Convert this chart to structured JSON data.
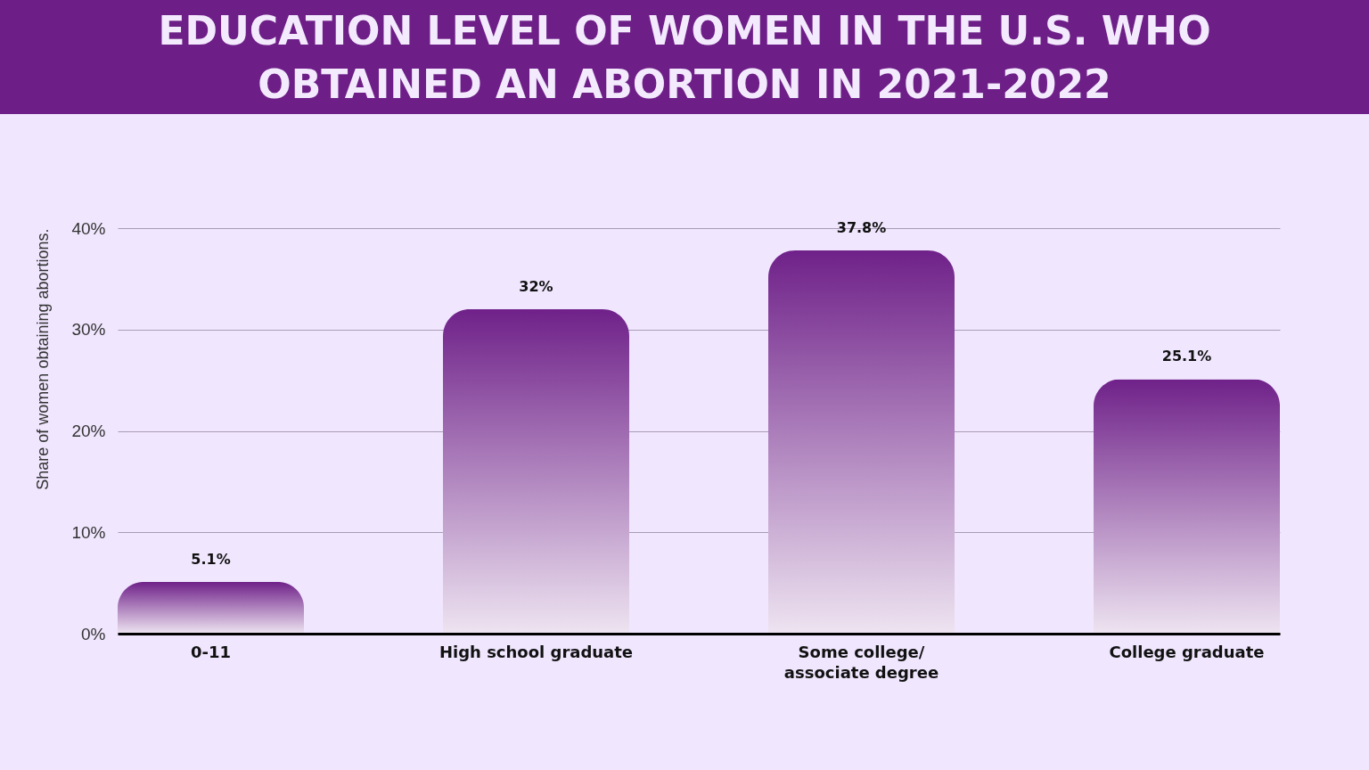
{
  "chart_data": {
    "type": "bar",
    "title": "EDUCATION LEVEL OF WOMEN IN THE U.S. WHO\nOBTAINED AN ABORTION IN 2021-2022",
    "ylabel": "Share of women obtaining abortions.",
    "categories": [
      "0-11",
      "High school graduate",
      "Some college/\nassociate degree",
      "College graduate"
    ],
    "values": [
      5.1,
      32,
      37.8,
      25.1
    ],
    "value_labels": [
      "5.1%",
      "32%",
      "37.8%",
      "25.1%"
    ],
    "color": "#6f2189",
    "ylim": [
      0,
      40
    ],
    "yticks": [
      {
        "value": 0,
        "label": "0%"
      },
      {
        "value": 10,
        "label": "10%"
      },
      {
        "value": 20,
        "label": "20%"
      },
      {
        "value": 30,
        "label": "30%"
      },
      {
        "value": 40,
        "label": "40%"
      }
    ],
    "grid": "y"
  }
}
